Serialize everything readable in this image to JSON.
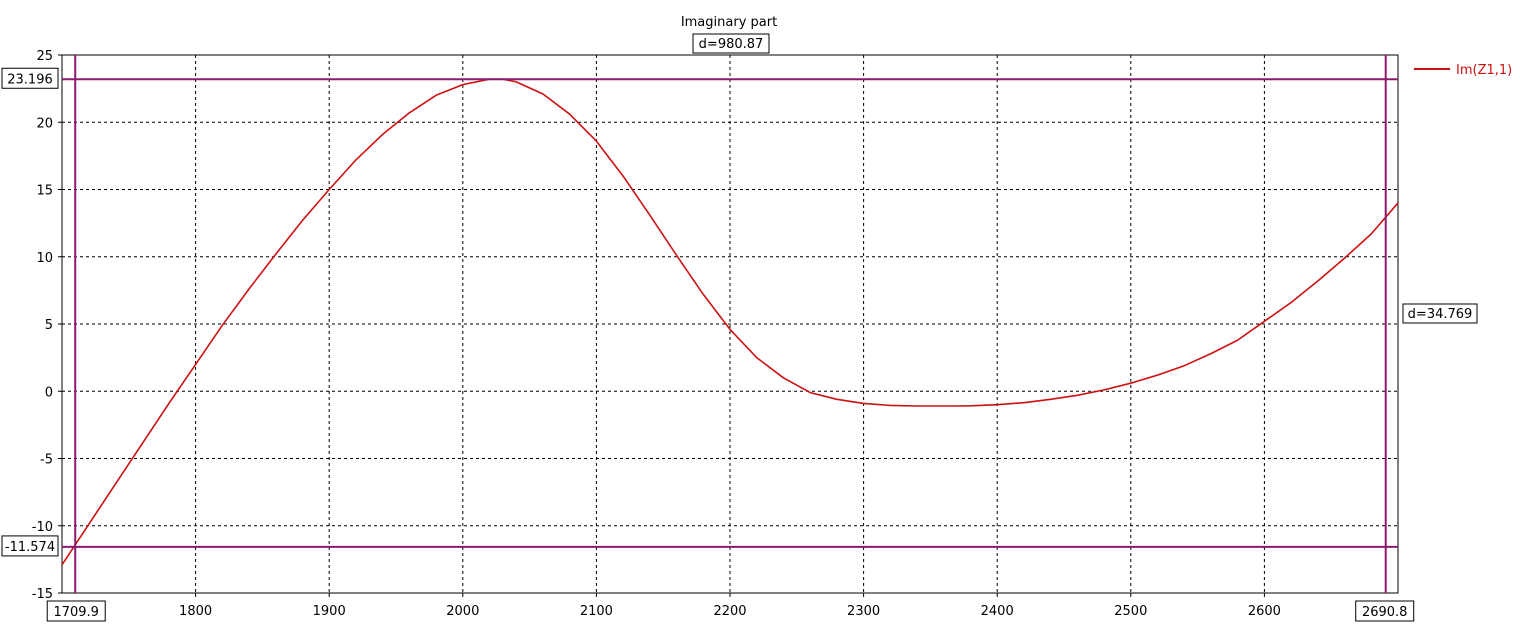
{
  "chart_data": {
    "type": "line",
    "title": "Imaginary part",
    "xlabel": "",
    "ylabel": "",
    "xlim": [
      1700,
      2700
    ],
    "ylim": [
      -15,
      25
    ],
    "x_ticks": [
      1800,
      1900,
      2000,
      2100,
      2200,
      2300,
      2400,
      2500,
      2600
    ],
    "y_ticks": [
      25,
      20,
      15,
      10,
      5,
      0,
      -5,
      -10,
      -15
    ],
    "grid": true,
    "legend_position": "top-right",
    "series": [
      {
        "name": "Im(Z1,1)",
        "color": "#cc1111",
        "x": [
          1700,
          1720,
          1740,
          1760,
          1780,
          1800,
          1820,
          1840,
          1860,
          1880,
          1900,
          1920,
          1940,
          1960,
          1980,
          2000,
          2020,
          2030,
          2040,
          2060,
          2080,
          2100,
          2120,
          2140,
          2160,
          2180,
          2200,
          2220,
          2240,
          2260,
          2280,
          2300,
          2320,
          2340,
          2360,
          2370,
          2380,
          2400,
          2420,
          2440,
          2460,
          2480,
          2500,
          2520,
          2540,
          2560,
          2580,
          2600,
          2620,
          2640,
          2660,
          2680,
          2700
        ],
        "y": [
          -12.9,
          -9.9,
          -6.9,
          -3.9,
          -0.9,
          2.0,
          4.9,
          7.6,
          10.2,
          12.7,
          15.0,
          17.2,
          19.1,
          20.7,
          22.0,
          22.8,
          23.2,
          23.2,
          23.0,
          22.1,
          20.6,
          18.6,
          16.0,
          13.1,
          10.1,
          7.2,
          4.6,
          2.5,
          1.0,
          -0.1,
          -0.6,
          -0.9,
          -1.05,
          -1.1,
          -1.1,
          -1.1,
          -1.08,
          -1.0,
          -0.85,
          -0.6,
          -0.3,
          0.1,
          0.6,
          1.2,
          1.9,
          2.8,
          3.8,
          5.2,
          6.6,
          8.2,
          9.9,
          11.7,
          14.0
        ]
      }
    ],
    "markers": {
      "horizontal": [
        "23.196",
        "-11.574"
      ],
      "vertical": [
        "1709.9",
        "2690.8"
      ],
      "x_delta": "d=980.87",
      "y_delta": "d=34.769"
    }
  },
  "colors": {
    "curve": "#cc1111",
    "marker": "#8b1a6e",
    "grid": "#000000"
  }
}
